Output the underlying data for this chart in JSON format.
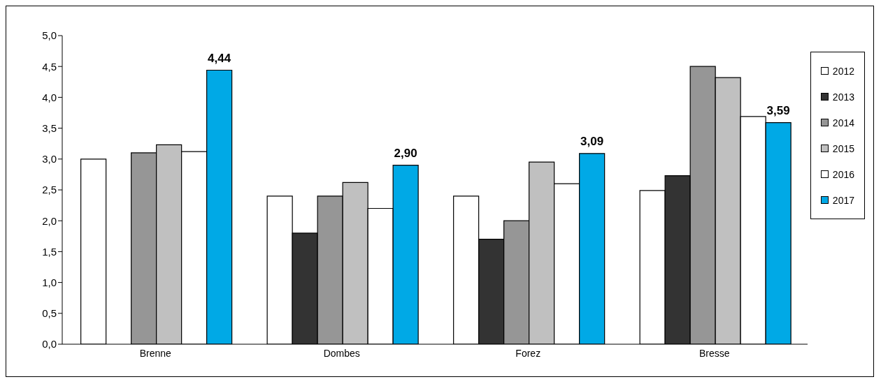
{
  "chart_data": {
    "type": "bar",
    "categories": [
      "Brenne",
      "Dombes",
      "Forez",
      "Bresse"
    ],
    "series": [
      {
        "name": "2012",
        "color": "#ffffff",
        "values": [
          3.0,
          2.4,
          2.4,
          2.49
        ]
      },
      {
        "name": "2013",
        "color": "#333333",
        "values": [
          null,
          1.8,
          1.7,
          2.73
        ]
      },
      {
        "name": "2014",
        "color": "#969696",
        "values": [
          3.1,
          2.4,
          2.0,
          4.5
        ]
      },
      {
        "name": "2015",
        "color": "#c0c0c0",
        "values": [
          3.23,
          2.62,
          2.95,
          4.32
        ]
      },
      {
        "name": "2016",
        "color": "#ffffff",
        "values": [
          3.12,
          2.2,
          2.6,
          3.69
        ]
      },
      {
        "name": "2017",
        "color": "#00a9e6",
        "values": [
          4.44,
          2.9,
          3.09,
          3.59
        ],
        "value_labels": [
          "4,44",
          "2,90",
          "3,09",
          "3,59"
        ]
      }
    ],
    "ylim": [
      0,
      5
    ],
    "yticks": [
      {
        "value": 0,
        "label": "0,0"
      },
      {
        "value": 0.5,
        "label": "0,5"
      },
      {
        "value": 1,
        "label": "1,0"
      },
      {
        "value": 1.5,
        "label": "1,5"
      },
      {
        "value": 2,
        "label": "2,0"
      },
      {
        "value": 2.5,
        "label": "2,5"
      },
      {
        "value": 3,
        "label": "3,0"
      },
      {
        "value": 3.5,
        "label": "3,5"
      },
      {
        "value": 4,
        "label": "4,0"
      },
      {
        "value": 4.5,
        "label": "4,5"
      },
      {
        "value": 5,
        "label": "5,0"
      }
    ],
    "grid": false,
    "legend": "right"
  }
}
